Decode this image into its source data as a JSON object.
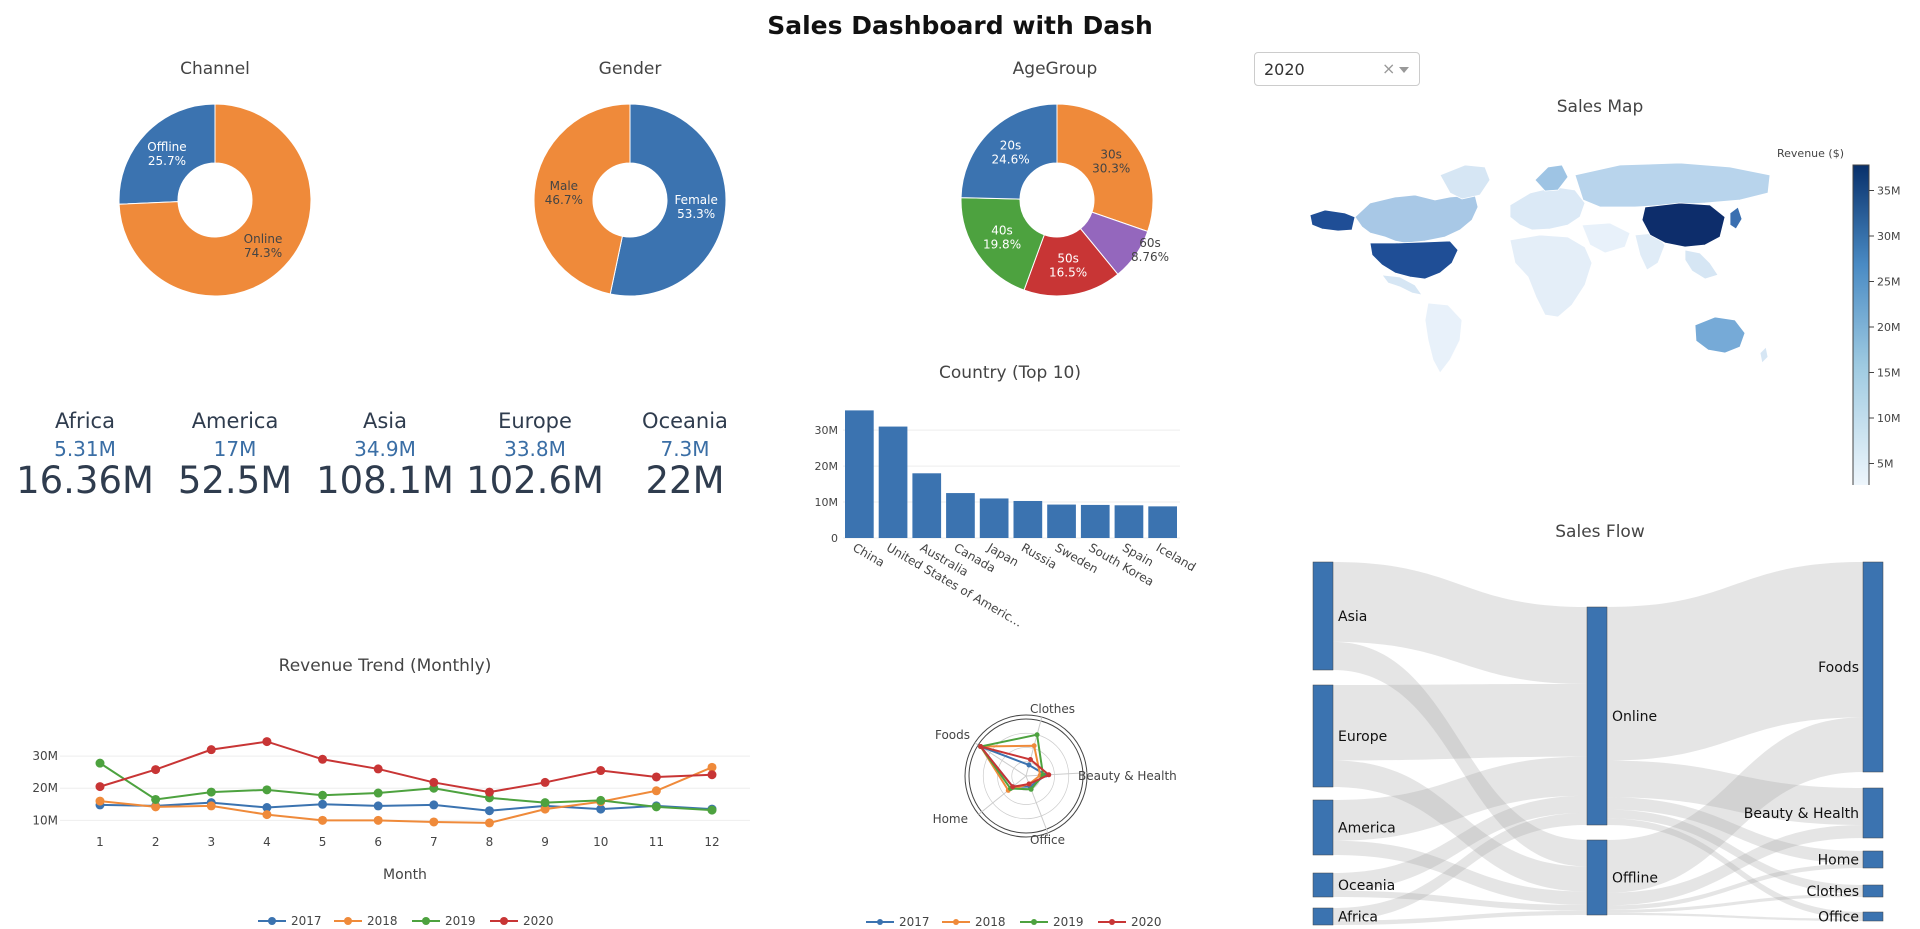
{
  "page": {
    "title": "Sales Dashboard with Dash"
  },
  "colors": {
    "blue": "#3b73b0",
    "orange": "#ef8a3a",
    "green": "#4da23f",
    "red": "#c83535",
    "purple": "#9467bd"
  },
  "pies": {
    "channel": {
      "title": "Channel",
      "slices": [
        {
          "label": "Offline",
          "pct": "25.7%",
          "value": 25.7
        },
        {
          "label": "Online",
          "pct": "74.3%",
          "value": 74.3
        }
      ]
    },
    "gender": {
      "title": "Gender",
      "slices": [
        {
          "label": "Female",
          "pct": "53.3%",
          "value": 53.3
        },
        {
          "label": "Male",
          "pct": "46.7%",
          "value": 46.7
        }
      ]
    },
    "age": {
      "title": "AgeGroup",
      "slices": [
        {
          "label": "30s",
          "pct": "30.3%",
          "value": 30.3
        },
        {
          "label": "60s",
          "pct": "8.76%",
          "value": 8.76
        },
        {
          "label": "50s",
          "pct": "16.5%",
          "value": 16.5
        },
        {
          "label": "40s",
          "pct": "19.8%",
          "value": 19.8
        },
        {
          "label": "20s",
          "pct": "24.6%",
          "value": 24.6
        }
      ]
    }
  },
  "year_filter": {
    "value": "2020",
    "clear": "×"
  },
  "regions": [
    {
      "name": "Africa",
      "delta": "5.31M",
      "value": "16.36M"
    },
    {
      "name": "America",
      "delta": "17M",
      "value": "52.5M"
    },
    {
      "name": "Asia",
      "delta": "34.9M",
      "value": "108.1M"
    },
    {
      "name": "Europe",
      "delta": "33.8M",
      "value": "102.6M"
    },
    {
      "name": "Oceania",
      "delta": "7.3M",
      "value": "22M"
    }
  ],
  "sales_map": {
    "title": "Sales Map",
    "colorbar_title": "Revenue ($)",
    "ticks": [
      "5M",
      "10M",
      "15M",
      "20M",
      "25M",
      "30M",
      "35M"
    ]
  },
  "sales_flow": {
    "title": "Sales Flow",
    "regions": [
      "Asia",
      "Europe",
      "America",
      "Oceania",
      "Africa"
    ],
    "channels": [
      "Online",
      "Offline"
    ],
    "categories": [
      "Foods",
      "Beauty & Health",
      "Home",
      "Clothes",
      "Office"
    ]
  },
  "chart_data": [
    {
      "type": "bar",
      "title": "Country (Top 10)",
      "categories": [
        "China",
        "United States of America",
        "Australia",
        "Canada",
        "Japan",
        "Russia",
        "Sweden",
        "South Korea",
        "Spain",
        "Iceland"
      ],
      "values": [
        35.5,
        31,
        18,
        12.5,
        11,
        10.3,
        9.3,
        9.2,
        9.1,
        8.8
      ],
      "tick_labels": [
        "0",
        "10M",
        "20M",
        "30M"
      ],
      "ylim": [
        0,
        37
      ]
    },
    {
      "type": "line",
      "title": "Revenue Trend (Monthly)",
      "xlabel": "Month",
      "x": [
        1,
        2,
        3,
        4,
        5,
        6,
        7,
        8,
        9,
        10,
        11,
        12
      ],
      "x_labels": [
        "1",
        "2",
        "3",
        "4",
        "5",
        "6",
        "7",
        "8",
        "9",
        "10",
        "11",
        "12"
      ],
      "tick_labels": [
        "10M",
        "20M",
        "30M"
      ],
      "ylim": [
        7,
        35
      ],
      "series": [
        {
          "name": "2017",
          "values": [
            14.8,
            14.5,
            15.5,
            14,
            15,
            14.5,
            14.8,
            13,
            14.5,
            13.5,
            14.5,
            13.5
          ]
        },
        {
          "name": "2018",
          "values": [
            16,
            14.2,
            14.5,
            11.8,
            10,
            10,
            9.5,
            9.2,
            13.5,
            15.8,
            19.2,
            26.5
          ]
        },
        {
          "name": "2019",
          "values": [
            27.8,
            16.5,
            18.8,
            19.5,
            17.8,
            18.5,
            20,
            17,
            15.5,
            16.2,
            14.2,
            13.2
          ]
        },
        {
          "name": "2020",
          "values": [
            20.5,
            25.8,
            32,
            34.5,
            29,
            26,
            21.8,
            18.8,
            21.8,
            25.5,
            23.5,
            24.2
          ]
        }
      ]
    },
    {
      "type": "radar",
      "title": "",
      "categories": [
        "Clothes",
        "Beauty & Health",
        "Office",
        "Home",
        "Foods"
      ],
      "rmax": 10,
      "series": [
        {
          "name": "2017",
          "values": [
            2,
            3.5,
            2,
            3,
            9.5
          ]
        },
        {
          "name": "2018",
          "values": [
            5.5,
            2.5,
            1.5,
            4,
            9.5
          ]
        },
        {
          "name": "2019",
          "values": [
            7.5,
            3,
            2.5,
            3.5,
            9.5
          ]
        },
        {
          "name": "2020",
          "values": [
            3,
            4,
            1.5,
            3,
            9.5
          ]
        }
      ]
    }
  ]
}
